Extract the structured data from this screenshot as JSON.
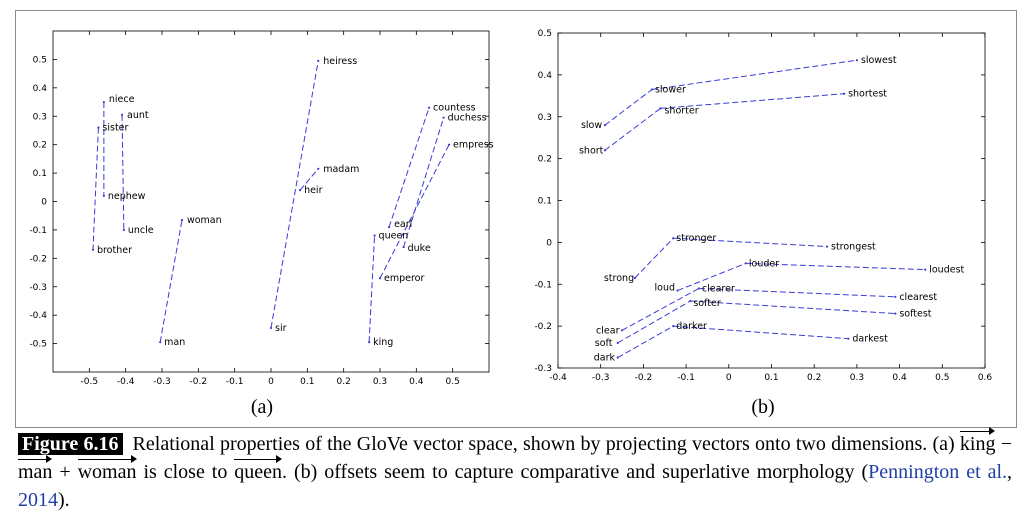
{
  "chart_data": [
    {
      "type": "scatter",
      "subfigure_label": "(a)",
      "xlim": [
        -0.6,
        0.6
      ],
      "ylim": [
        -0.6,
        0.6
      ],
      "xticks": [
        "-0.5",
        "-0.4",
        "-0.3",
        "-0.2",
        "-0.1",
        "0",
        "0.1",
        "0.2",
        "0.3",
        "0.4",
        "0.5"
      ],
      "yticks": [
        "0.5",
        "0.4",
        "0.3",
        "0.2",
        "0.1",
        "0",
        "-0.1",
        "-0.2",
        "-0.3",
        "-0.4",
        "-0.5"
      ],
      "grid": false,
      "points": [
        {
          "label": "heiress",
          "x": 0.13,
          "y": 0.495
        },
        {
          "label": "madam",
          "x": 0.13,
          "y": 0.115
        },
        {
          "label": "heir",
          "x": 0.08,
          "y": 0.04
        },
        {
          "label": "sir",
          "x": 0.0,
          "y": -0.445
        },
        {
          "label": "niece",
          "x": -0.46,
          "y": 0.35
        },
        {
          "label": "aunt",
          "x": -0.41,
          "y": 0.305
        },
        {
          "label": "sister",
          "x": -0.475,
          "y": 0.26
        },
        {
          "label": "nephew",
          "x": -0.46,
          "y": 0.02
        },
        {
          "label": "uncle",
          "x": -0.405,
          "y": -0.1
        },
        {
          "label": "brother",
          "x": -0.49,
          "y": -0.17
        },
        {
          "label": "woman",
          "x": -0.245,
          "y": -0.065
        },
        {
          "label": "man",
          "x": -0.305,
          "y": -0.495
        },
        {
          "label": "countess",
          "x": 0.435,
          "y": 0.33
        },
        {
          "label": "duchess",
          "x": 0.475,
          "y": 0.295
        },
        {
          "label": "empress",
          "x": 0.49,
          "y": 0.2
        },
        {
          "label": "earl",
          "x": 0.325,
          "y": -0.09
        },
        {
          "label": "queen",
          "x": 0.285,
          "y": -0.12
        },
        {
          "label": "duke",
          "x": 0.365,
          "y": -0.16
        },
        {
          "label": "emperor",
          "x": 0.3,
          "y": -0.27
        },
        {
          "label": "king",
          "x": 0.27,
          "y": -0.495
        }
      ],
      "pairs": [
        [
          "sir",
          "heiress"
        ],
        [
          "heir",
          "madam"
        ],
        [
          "niece",
          "nephew"
        ],
        [
          "aunt",
          "uncle"
        ],
        [
          "sister",
          "brother"
        ],
        [
          "man",
          "woman"
        ],
        [
          "earl",
          "countess"
        ],
        [
          "duke",
          "duchess"
        ],
        [
          "emperor",
          "empress"
        ],
        [
          "king",
          "queen"
        ]
      ]
    },
    {
      "type": "scatter",
      "subfigure_label": "(b)",
      "xlim": [
        -0.4,
        0.6
      ],
      "ylim": [
        -0.3,
        0.5
      ],
      "xticks": [
        "-0.4",
        "-0.3",
        "-0.2",
        "-0.1",
        "0",
        "0.1",
        "0.2",
        "0.3",
        "0.4",
        "0.5",
        "0.6"
      ],
      "yticks": [
        "0.5",
        "0.4",
        "0.3",
        "0.2",
        "0.1",
        "0",
        "-0.1",
        "-0.2",
        "-0.3"
      ],
      "grid": false,
      "points": [
        {
          "label": "slow",
          "x": -0.29,
          "y": 0.28
        },
        {
          "label": "slower",
          "x": -0.18,
          "y": 0.365
        },
        {
          "label": "slowest",
          "x": 0.3,
          "y": 0.435
        },
        {
          "label": "short",
          "x": -0.29,
          "y": 0.22
        },
        {
          "label": "shorter",
          "x": -0.16,
          "y": 0.32
        },
        {
          "label": "shortest",
          "x": 0.27,
          "y": 0.355
        },
        {
          "label": "strong",
          "x": -0.22,
          "y": -0.085
        },
        {
          "label": "stronger",
          "x": -0.13,
          "y": 0.01
        },
        {
          "label": "strongest",
          "x": 0.23,
          "y": -0.01
        },
        {
          "label": "loud",
          "x": -0.12,
          "y": -0.115
        },
        {
          "label": "louder",
          "x": 0.04,
          "y": -0.05
        },
        {
          "label": "loudest",
          "x": 0.46,
          "y": -0.065
        },
        {
          "label": "clear",
          "x": -0.25,
          "y": -0.21
        },
        {
          "label": "clearer",
          "x": -0.07,
          "y": -0.11
        },
        {
          "label": "clearest",
          "x": 0.39,
          "y": -0.13
        },
        {
          "label": "soft",
          "x": -0.26,
          "y": -0.24
        },
        {
          "label": "softer",
          "x": -0.09,
          "y": -0.14
        },
        {
          "label": "softest",
          "x": 0.39,
          "y": -0.17
        },
        {
          "label": "dark",
          "x": -0.26,
          "y": -0.275
        },
        {
          "label": "darker",
          "x": -0.13,
          "y": -0.2
        },
        {
          "label": "darkest",
          "x": 0.28,
          "y": -0.23
        }
      ],
      "pairs": [
        [
          "slow",
          "slower"
        ],
        [
          "slower",
          "slowest"
        ],
        [
          "short",
          "shorter"
        ],
        [
          "shorter",
          "shortest"
        ],
        [
          "strong",
          "stronger"
        ],
        [
          "stronger",
          "strongest"
        ],
        [
          "loud",
          "louder"
        ],
        [
          "louder",
          "loudest"
        ],
        [
          "clear",
          "clearer"
        ],
        [
          "clearer",
          "clearest"
        ],
        [
          "soft",
          "softer"
        ],
        [
          "softer",
          "softest"
        ],
        [
          "dark",
          "darker"
        ],
        [
          "darker",
          "darkest"
        ]
      ]
    }
  ],
  "caption": {
    "figure_label": "Figure 6.16",
    "text_1": "Relational properties of the GloVe vector space, shown by projecting vectors onto two dimensions. (a) ",
    "vec_king": "king",
    "op_minus": " − ",
    "vec_man": "man",
    "op_plus": " + ",
    "vec_woman": "woman",
    "text_2": " is close to ",
    "vec_queen": "queen",
    "text_3": ". (b) offsets seem to capture comparative and superlative morphology (",
    "cite_author": "Pennington et al.",
    "cite_sep": ", ",
    "cite_year": "2014",
    "text_4": ")."
  },
  "colors": {
    "line": "#3b3bd6",
    "axis": "#000000",
    "frame": "#8a8a8a"
  }
}
